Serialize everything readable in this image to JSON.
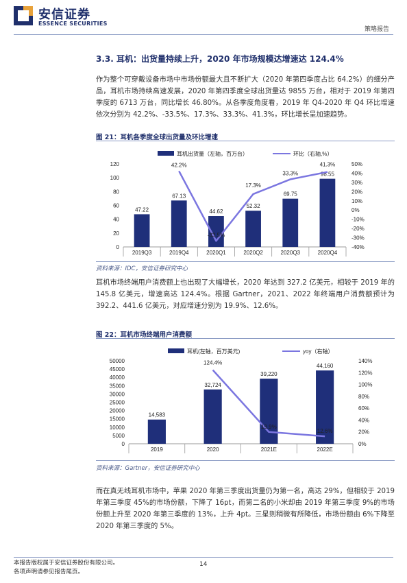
{
  "header": {
    "logo_cn": "安信证券",
    "logo_en": "ESSENCE SECURITIES",
    "report_type": "策略报告"
  },
  "section": {
    "title": "3.3. 耳机：出货量持续上升，2020 年市场规模达增速达 124.4%",
    "para1": "作为整个可穿戴设备市场中市场份额最大且不断扩大（2020 年第四季度占比 64.2%）的细分产品，耳机市场持续高速发展，2020 年第四季度全球出货量达 9855 万台，相对于 2019 年第四季度的 6713 万台，同比增长 46.80%。从各季度角度看，2019 年 Q4-2020 年 Q4 环比增速依次分别为 42.2%、-33.5%、17.3%、33.3%、41.3%，环比增长呈加速趋势。",
    "para2": "耳机市场终端用户消费额上也出现了大幅增长，2020 年达到 327.2 亿美元，相较于 2019 年的 145.8 亿美元，增速高达 124.4%。根据 Gartner，2021、2022 年终端用户消费额预计为 392.2、441.6 亿美元，对应增速分别为 19.9%、12.6%。",
    "para3": "而在真无线耳机市场中，苹果 2020 年第三季度出货量仍为第一名，高达 29%，但相较于 2019 年第三季度 45%的市场份额，下降了 16pt，而第二名的小米却由 2019 年第三季度 9%的市场份额上升至 2020 年第三季度的 13%，上升 4pt。三星则稍微有所降低，市场份额由 6%下降至 2020 年第三季度的 5%。"
  },
  "figure21": {
    "caption": "图 21：耳机各季度全球出货量及环比增速",
    "source": "资料来源：IDC，安信证券研究中心"
  },
  "figure22": {
    "caption": "图 22：耳机市场终端用户消费额",
    "source": "资料来源：Gartner，安信证券研究中心"
  },
  "footer": {
    "line1": "本报告版权属于安信证券股份有限公司。",
    "line2": "各项声明请参见报告尾页。",
    "page": "14"
  },
  "colors": {
    "bar": "#1f2f7a",
    "line": "#7b76e0",
    "brand": "#1f2f6b"
  },
  "chart_data": [
    {
      "type": "bar",
      "categories": [
        "2019Q3",
        "2019Q4",
        "2020Q1",
        "2020Q2",
        "2020Q3",
        "2020Q4"
      ],
      "series": [
        {
          "name": "耳机出货量（左轴，百万台）",
          "type": "bar",
          "axis": "left",
          "values": [
            47.22,
            67.13,
            44.62,
            52.32,
            69.75,
            98.55
          ],
          "labels": [
            "47.22",
            "67.13",
            "44.62",
            "52.32",
            "69.75",
            "98.55"
          ]
        },
        {
          "name": "环比（右轴,%）",
          "type": "line",
          "axis": "right",
          "values": [
            null,
            42.2,
            -33.5,
            17.3,
            33.3,
            41.3
          ],
          "labels": [
            "",
            "42.2%",
            "-33.5%",
            "17.3%",
            "33.3%",
            "41.3%"
          ]
        }
      ],
      "ylim_left": [
        0,
        120
      ],
      "yticks_left": [
        "0",
        "20",
        "40",
        "60",
        "80",
        "100",
        "120"
      ],
      "ylim_right": [
        -40,
        50
      ],
      "yticks_right": [
        "-40%",
        "-30%",
        "-20%",
        "-10%",
        "0%",
        "10%",
        "20%",
        "30%",
        "40%",
        "50%"
      ],
      "legend": "top",
      "grid": false
    },
    {
      "type": "bar",
      "categories": [
        "2019",
        "2020",
        "2021E",
        "2022E"
      ],
      "series": [
        {
          "name": "耳机(左轴，百万美元)",
          "type": "bar",
          "axis": "left",
          "values": [
            14583,
            32724,
            39220,
            44160
          ],
          "labels": [
            "14,583",
            "32,724",
            "39,220",
            "44,160"
          ]
        },
        {
          "name": "yoy（右轴）",
          "type": "line",
          "axis": "right",
          "values": [
            null,
            124.4,
            19.9,
            12.6
          ],
          "labels": [
            "",
            "124.4%",
            "19.9%",
            "12.6%"
          ]
        }
      ],
      "ylim_left": [
        0,
        50000
      ],
      "yticks_left": [
        "0",
        "5000",
        "10000",
        "15000",
        "20000",
        "25000",
        "30000",
        "35000",
        "40000",
        "45000",
        "50000"
      ],
      "ylim_right": [
        0,
        140
      ],
      "yticks_right": [
        "0%",
        "20%",
        "40%",
        "60%",
        "80%",
        "100%",
        "120%",
        "140%"
      ],
      "legend": "top",
      "grid": false
    }
  ]
}
